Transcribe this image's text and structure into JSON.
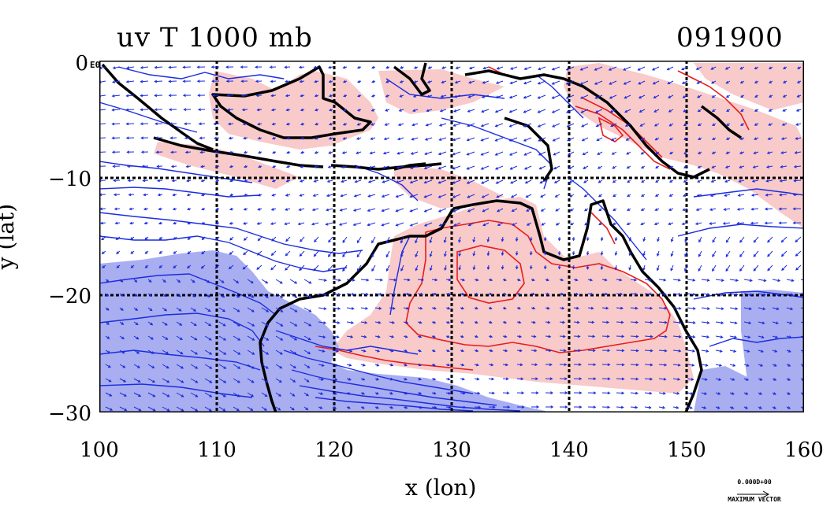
{
  "chart_data": {
    "type": "map-contour-vector",
    "title": "uv T 1000 mb",
    "date_label": "091900",
    "xlabel": "x (lon)",
    "ylabel": "y (lat)",
    "xlim": [
      100,
      160
    ],
    "ylim": [
      -30,
      0
    ],
    "x_ticks": [
      100,
      110,
      120,
      130,
      140,
      150,
      160
    ],
    "y_ticks": [
      0,
      -10,
      -20,
      -30
    ],
    "x_tick_labels": [
      "100",
      "110",
      "120",
      "130",
      "140",
      "150",
      "160"
    ],
    "y_tick_labels": [
      "0",
      "−10",
      "−20",
      "−30"
    ],
    "y_top_suffix": "E0",
    "grid": true,
    "vector_legend": {
      "magnitude": "0.000D+00",
      "label": "MAXIMUM VECTOR"
    },
    "colors": {
      "warm_fill": "#f8caca",
      "cold_fill": "#a9aef0",
      "warm_contour": "#e81c1c",
      "cold_contour": "#1c2ce0",
      "coastline": "#000000",
      "vector": "#1a2cdc"
    }
  }
}
